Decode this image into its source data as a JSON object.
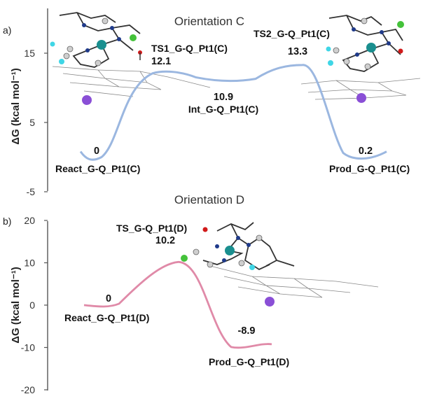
{
  "chart_data": [
    {
      "type": "line",
      "panel_label": "a)",
      "title": "Orientation C",
      "ylabel": "ΔG (kcal mol⁻¹)",
      "ylim": [
        -5,
        20
      ],
      "yticks": [
        "-5",
        "5",
        "15"
      ],
      "ytick_values": [
        -5,
        5,
        15
      ],
      "color": "#9bb7e0",
      "series": [
        {
          "values": [
            0,
            12.1,
            10.9,
            13.3,
            0.2
          ],
          "labels": [
            "React_G-Q_Pt1(C)",
            "TS1_G-Q_Pt1(C)",
            "Int_G-Q_Pt1(C)",
            "TS2_G-Q_Pt1(C)",
            "Prod_G-Q_Pt1(C)"
          ],
          "value_labels": [
            "0",
            "12.1",
            "10.9",
            "13.3",
            "0.2"
          ]
        }
      ]
    },
    {
      "type": "line",
      "panel_label": "b)",
      "title": "Orientation D",
      "ylabel": "ΔG (kcal mol⁻¹)",
      "ylim": [
        -20,
        20
      ],
      "yticks": [
        "-20",
        "-10",
        "0",
        "10",
        "20"
      ],
      "ytick_values": [
        -20,
        -10,
        0,
        10,
        20
      ],
      "color": "#e08aa8",
      "series": [
        {
          "values": [
            0,
            10.2,
            -8.9
          ],
          "labels": [
            "React_G-Q_Pt1(D)",
            "TS_G-Q_Pt1(D)",
            "Prod_G-Q_Pt1(D)"
          ],
          "value_labels": [
            "0",
            "10.2",
            "-8.9"
          ]
        }
      ]
    }
  ],
  "colors": {
    "pt_atom": "#1a8f8f",
    "nitrogen_atom": "#1f3a8a",
    "hydrogen_atom": "#e8e8e8",
    "carbon_atom": "#9a9a9a",
    "green_atom": "#44c23a",
    "purple_atom": "#8a4fd6",
    "cyan_atom": "#3fd6e6",
    "oxygen_atom": "#d11a1a"
  }
}
